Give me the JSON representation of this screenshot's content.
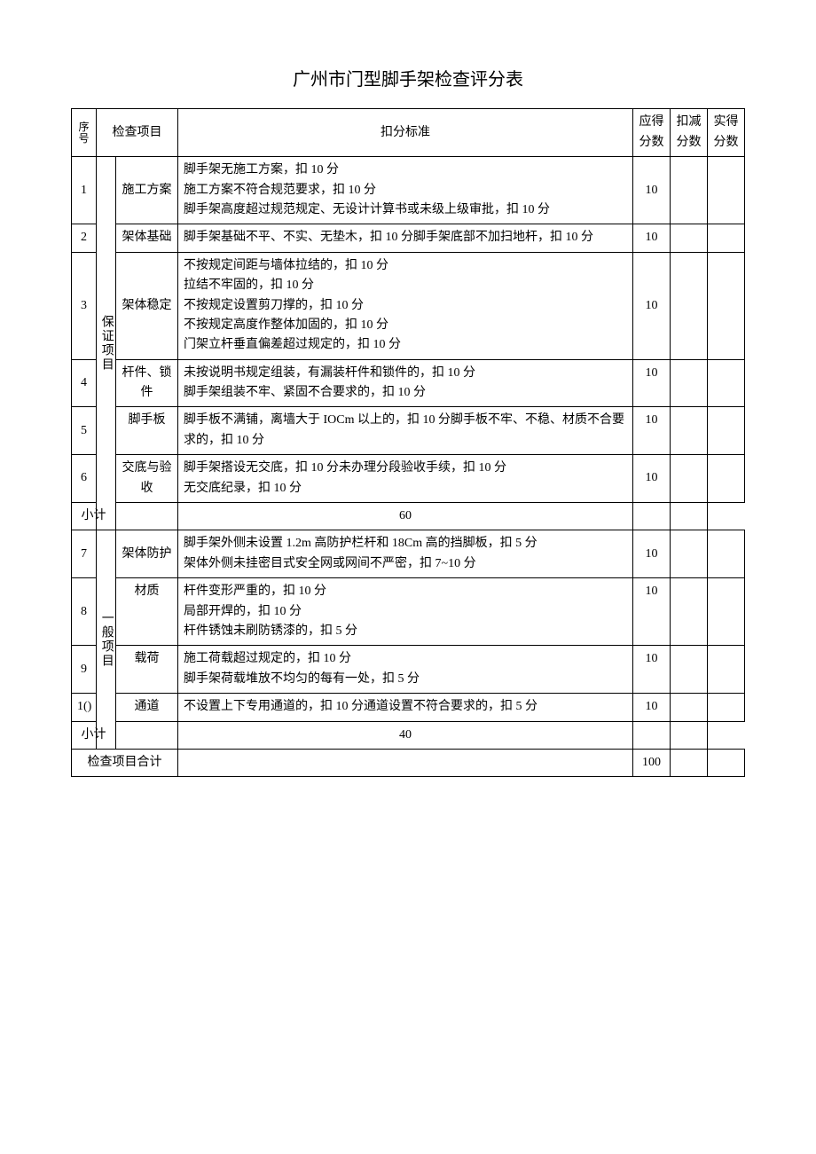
{
  "title": "广州市门型脚手架检查评分表",
  "headers": {
    "seq": "序号",
    "check_item": "检查项目",
    "criteria": "扣分标准",
    "score_due": "应得分数",
    "score_deduct": "扣减分数",
    "score_actual": "实得分数"
  },
  "categories": {
    "guarantee": "保证项目",
    "general": "一般项目"
  },
  "rows": [
    {
      "seq": "1",
      "item": "施工方案",
      "criteria": "脚手架无施工方案，扣 10 分\n施工方案不符合规范要求，扣 10 分\n脚手架高度超过规范规定、无设计计算书或未级上级审批，扣 10 分",
      "score": "10"
    },
    {
      "seq": "2",
      "item": "架体基础",
      "criteria": "脚手架基础不平、不实、无垫木，扣 10 分脚手架底部不加扫地杆，扣 10 分",
      "score": "10"
    },
    {
      "seq": "3",
      "item": "架体稳定",
      "criteria": "不按规定间距与墙体拉结的，扣 10 分\n拉结不牢固的，扣 10 分\n不按规定设置剪刀撑的，扣 10 分\n不按规定高度作整体加固的，扣 10 分\n门架立杆垂直偏差超过规定的，扣 10 分",
      "score": "10"
    },
    {
      "seq": "4",
      "item": "杆件、锁件",
      "criteria": "未按说明书规定组装，有漏装杆件和锁件的，扣 10 分\n脚手架组装不牢、紧固不合要求的，扣 10 分",
      "score": "10"
    },
    {
      "seq": "5",
      "item": "脚手板",
      "criteria": "脚手板不满铺，离墙大于 IOCm 以上的，扣 10 分脚手板不牢、不稳、材质不合要求的，扣 10 分",
      "score": "10"
    },
    {
      "seq": "6",
      "item": "交底与验收",
      "criteria": "脚手架搭设无交底，扣 10 分未办理分段验收手续，扣 10 分\n无交底纪录，扣 10 分",
      "score": "10"
    },
    {
      "seq": "7",
      "item": "架体防护",
      "criteria": "脚手架外侧未设置 1.2m 高防护栏杆和 18Cm 高的挡脚板，扣 5 分\n架体外侧未挂密目式安全网或网间不严密，扣 7~10 分",
      "score": "10"
    },
    {
      "seq": "8",
      "item": "材质",
      "criteria": "杆件变形严重的，扣 10 分\n局部开焊的，扣 10 分\n杆件锈蚀未刷防锈漆的，扣 5 分",
      "score": "10"
    },
    {
      "seq": "9",
      "item": "载荷",
      "criteria": "施工荷载超过规定的，扣 10 分\n脚手架荷载堆放不均匀的每有一处，扣 5 分",
      "score": "10"
    },
    {
      "seq": "1()",
      "item": "通道",
      "criteria": "不设置上下专用通道的，扣 10 分通道设置不符合要求的，扣 5 分",
      "score": "10"
    }
  ],
  "subtotals": {
    "label": "小计",
    "guarantee": "60",
    "general": "40"
  },
  "total": {
    "label": "检查项目合计",
    "value": "100"
  }
}
